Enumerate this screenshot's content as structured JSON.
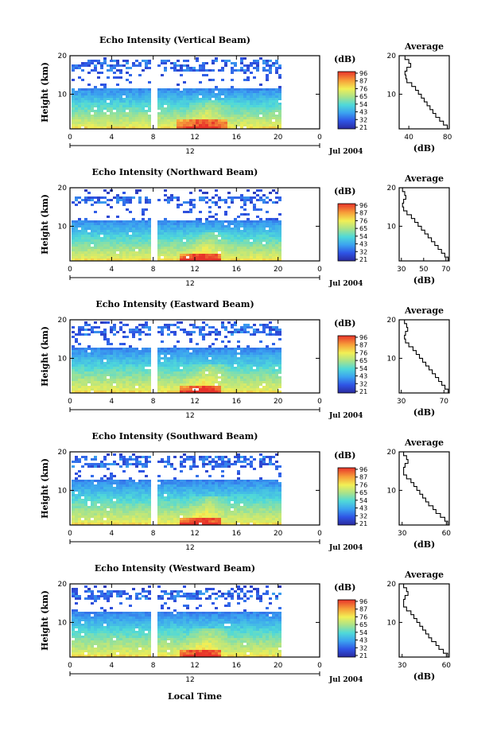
{
  "figure": {
    "xlabel": "Local Time",
    "date_label": "Jul 2004",
    "colorbar_unit": "(dB)",
    "colorbar_ticks": [
      "96",
      "87",
      "76",
      "65",
      "54",
      "43",
      "32",
      "21"
    ],
    "avg_title": "Average",
    "avg_xlabel": "(dB)"
  },
  "chart_data": [
    {
      "type": "heatmap",
      "title": "Echo Intensity (Vertical Beam)",
      "ylabel": "Height (km)",
      "x_ticks": [
        "0",
        "4",
        "8",
        "12",
        "16",
        "20",
        "0"
      ],
      "date_tick": "12",
      "y_ticks": [
        "20",
        "10"
      ],
      "xlim": [
        0,
        24
      ],
      "ylim": [
        1,
        20
      ],
      "data_end_hour": 20.3,
      "gap_hour": 7.9,
      "upper_echo_band_km": [
        16,
        19.5
      ],
      "clear_gap_km": [
        12,
        15
      ],
      "max_echo_km": [
        1,
        4
      ],
      "max_echo_hours": [
        10,
        15
      ],
      "colorbar_range_db": [
        21,
        96
      ],
      "average_profile": {
        "title": "Average",
        "xlabel": "(dB)",
        "x_ticks": [
          "40",
          "80"
        ],
        "y_ticks": [
          "20",
          "10"
        ],
        "xlim": [
          30,
          82
        ],
        "height_km": [
          1,
          2,
          3,
          4,
          5,
          6,
          7,
          8,
          9,
          10,
          11,
          12,
          13,
          14,
          15,
          16,
          17,
          18,
          19,
          20
        ],
        "mean_db": [
          80,
          76,
          72,
          68,
          65,
          62,
          59,
          56,
          53,
          50,
          47,
          43,
          38,
          37,
          36,
          38,
          42,
          40,
          36,
          33
        ]
      }
    },
    {
      "type": "heatmap",
      "title": "Echo Intensity (Northward Beam)",
      "ylabel": "Height (km)",
      "x_ticks": [
        "0",
        "4",
        "8",
        "12",
        "16",
        "20",
        "0"
      ],
      "date_tick": "12",
      "y_ticks": [
        "20",
        "10"
      ],
      "xlim": [
        0,
        24
      ],
      "ylim": [
        1,
        20
      ],
      "data_end_hour": 20.3,
      "gap_hour": 7.9,
      "upper_echo_band_km": [
        16,
        18
      ],
      "clear_gap_km": [
        12,
        15.5
      ],
      "max_echo_km": [
        1,
        3
      ],
      "max_echo_hours": [
        10.5,
        14.5
      ],
      "colorbar_range_db": [
        21,
        96
      ],
      "average_profile": {
        "title": "Average",
        "xlabel": "(dB)",
        "x_ticks": [
          "30",
          "50",
          "70"
        ],
        "y_ticks": [
          "20",
          "10"
        ],
        "xlim": [
          28,
          73
        ],
        "height_km": [
          1,
          2,
          3,
          4,
          5,
          6,
          7,
          8,
          9,
          10,
          11,
          12,
          13,
          14,
          15,
          16,
          17,
          18,
          19,
          20
        ],
        "mean_db": [
          72,
          69,
          66,
          63,
          60,
          57,
          54,
          51,
          48,
          45,
          42,
          39,
          35,
          32,
          31,
          32,
          34,
          33,
          31,
          30
        ]
      }
    },
    {
      "type": "heatmap",
      "title": "Echo Intensity (Eastward Beam)",
      "ylabel": "Height (km)",
      "x_ticks": [
        "0",
        "4",
        "8",
        "12",
        "16",
        "20",
        "0"
      ],
      "date_tick": "12",
      "y_ticks": [
        "20",
        "10"
      ],
      "xlim": [
        0,
        24
      ],
      "ylim": [
        1,
        20
      ],
      "data_end_hour": 20.3,
      "gap_hour": 7.9,
      "upper_echo_band_km": [
        16,
        19
      ],
      "clear_gap_km": [
        13,
        15
      ],
      "max_echo_km": [
        1,
        3
      ],
      "max_echo_hours": [
        10.5,
        14.5
      ],
      "colorbar_range_db": [
        21,
        96
      ],
      "average_profile": {
        "title": "Average",
        "xlabel": "(dB)",
        "x_ticks": [
          "30",
          "70"
        ],
        "y_ticks": [
          "20",
          "10"
        ],
        "xlim": [
          28,
          75
        ],
        "height_km": [
          1,
          2,
          3,
          4,
          5,
          6,
          7,
          8,
          9,
          10,
          11,
          12,
          13,
          14,
          15,
          16,
          17,
          18,
          19,
          20
        ],
        "mean_db": [
          74,
          71,
          68,
          65,
          62,
          59,
          56,
          53,
          50,
          47,
          44,
          41,
          37,
          34,
          33,
          34,
          36,
          35,
          33,
          31
        ]
      }
    },
    {
      "type": "heatmap",
      "title": "Echo Intensity (Southward Beam)",
      "ylabel": "Height (km)",
      "x_ticks": [
        "0",
        "4",
        "8",
        "12",
        "16",
        "20",
        "0"
      ],
      "date_tick": "12",
      "y_ticks": [
        "20",
        "10"
      ],
      "xlim": [
        0,
        24
      ],
      "ylim": [
        1,
        20
      ],
      "data_end_hour": 20.3,
      "gap_hour": 7.9,
      "upper_echo_band_km": [
        16,
        19.5
      ],
      "clear_gap_km": [
        13,
        15
      ],
      "max_echo_km": [
        1,
        3
      ],
      "max_echo_hours": [
        10.5,
        14.5
      ],
      "colorbar_range_db": [
        21,
        96
      ],
      "average_profile": {
        "title": "Average",
        "xlabel": "(dB)",
        "x_ticks": [
          "30",
          "60"
        ],
        "y_ticks": [
          "20",
          "10"
        ],
        "xlim": [
          28,
          62
        ],
        "height_km": [
          1,
          2,
          3,
          4,
          5,
          6,
          7,
          8,
          9,
          10,
          11,
          12,
          13,
          14,
          15,
          16,
          17,
          18,
          19,
          20
        ],
        "mean_db": [
          61,
          59,
          56,
          53,
          51,
          48,
          46,
          44,
          42,
          40,
          38,
          36,
          33,
          31,
          31,
          32,
          34,
          33,
          31,
          30
        ]
      }
    },
    {
      "type": "heatmap",
      "title": "Echo Intensity (Westward Beam)",
      "ylabel": "Height (km)",
      "x_ticks": [
        "0",
        "4",
        "8",
        "12",
        "16",
        "20",
        "0"
      ],
      "date_tick": "12",
      "y_ticks": [
        "20",
        "10"
      ],
      "xlim": [
        0,
        24
      ],
      "ylim": [
        1,
        20
      ],
      "data_end_hour": 20.3,
      "gap_hour": 7.9,
      "upper_echo_band_km": [
        16,
        18.5
      ],
      "clear_gap_km": [
        13,
        15.5
      ],
      "max_echo_km": [
        1,
        3
      ],
      "max_echo_hours": [
        10.5,
        14.5
      ],
      "colorbar_range_db": [
        21,
        96
      ],
      "average_profile": {
        "title": "Average",
        "xlabel": "(dB)",
        "x_ticks": [
          "30",
          "60"
        ],
        "y_ticks": [
          "20",
          "10"
        ],
        "xlim": [
          28,
          62
        ],
        "height_km": [
          1,
          2,
          3,
          4,
          5,
          6,
          7,
          8,
          9,
          10,
          11,
          12,
          13,
          14,
          15,
          16,
          17,
          18,
          19,
          20
        ],
        "mean_db": [
          61,
          58,
          55,
          53,
          50,
          48,
          46,
          44,
          42,
          40,
          38,
          36,
          33,
          31,
          31,
          32,
          34,
          33,
          31,
          30
        ]
      }
    }
  ]
}
